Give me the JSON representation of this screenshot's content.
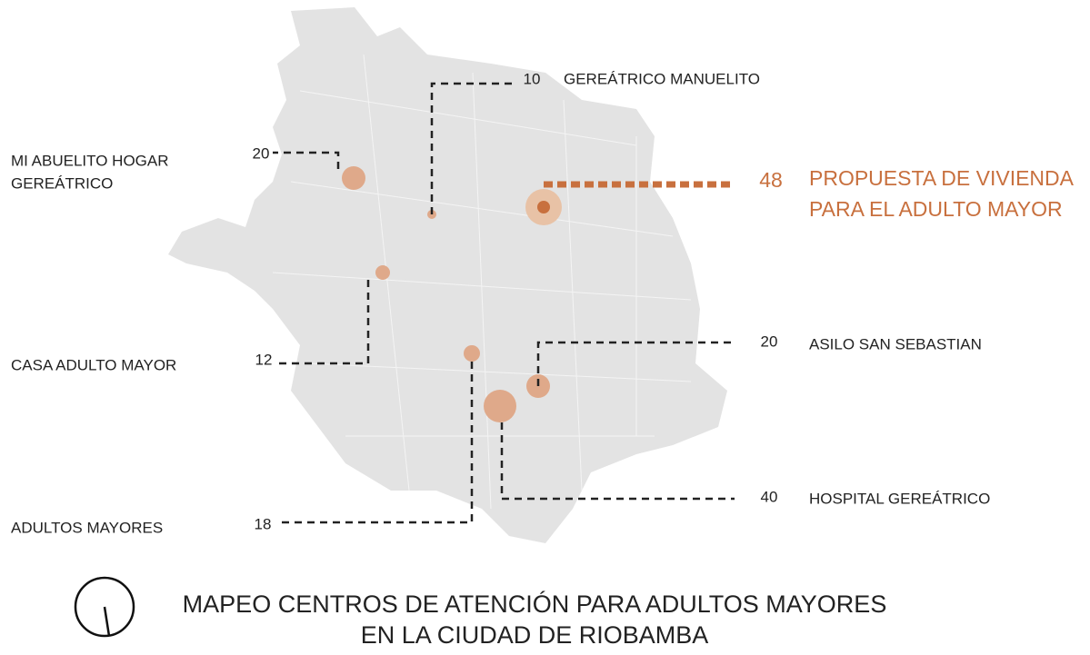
{
  "title": [
    "MAPEO CENTROS DE ATENCIÓN PARA ADULTOS MAYORES",
    "EN LA CIUDAD DE RIOBAMBA"
  ],
  "facilities": [
    {
      "name": [
        "GEREÁTRICO MANUELITO"
      ],
      "capacity": 10
    },
    {
      "name": [
        "MI ABUELITO HOGAR",
        "GEREÁTRICO"
      ],
      "capacity": 20
    },
    {
      "name": [
        "PROPUESTA DE VIVIENDA",
        "PARA EL ADULTO MAYOR"
      ],
      "capacity": 48
    },
    {
      "name": [
        "CASA ADULTO MAYOR"
      ],
      "capacity": 12
    },
    {
      "name": [
        "ASILO SAN SEBASTIAN"
      ],
      "capacity": 20
    },
    {
      "name": [
        "HOSPITAL GEREÁTRICO"
      ],
      "capacity": 40
    },
    {
      "name": [
        "ADULTOS MAYORES"
      ],
      "capacity": 18
    }
  ]
}
